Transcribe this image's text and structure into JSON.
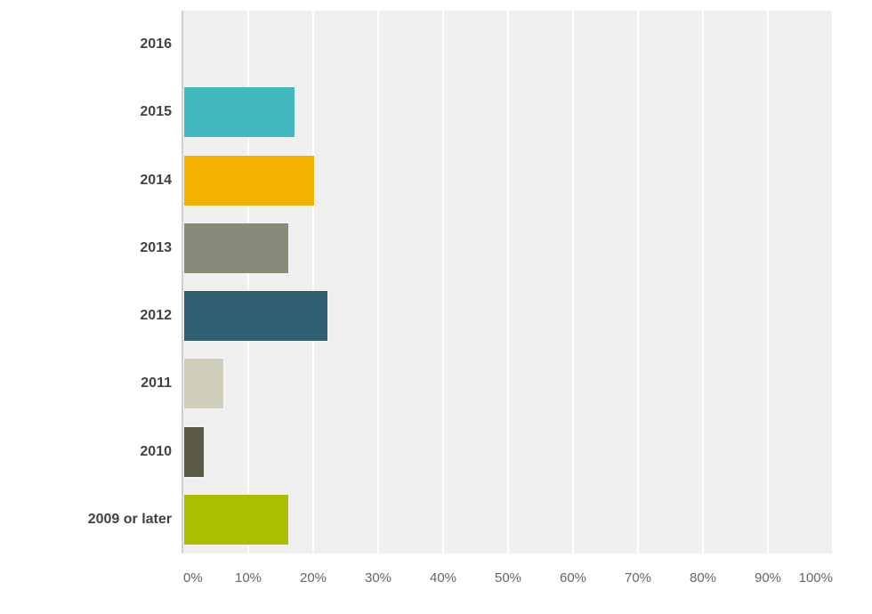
{
  "chart_data": {
    "type": "bar",
    "orientation": "horizontal",
    "title": "",
    "xlabel": "",
    "ylabel": "",
    "categories": [
      "2016",
      "2015",
      "2014",
      "2013",
      "2012",
      "2011",
      "2010",
      "2009 or later"
    ],
    "values": [
      0,
      17,
      20,
      16,
      22,
      6,
      3,
      16
    ],
    "value_unit": "%",
    "colors": [
      null,
      "#44b9bd",
      "#f3b200",
      "#898b7a",
      "#315f71",
      "#cecdb9",
      "#5b5a49",
      "#aabf00"
    ],
    "xlim": [
      0,
      100
    ],
    "x_ticks": [
      "0%",
      "10%",
      "20%",
      "30%",
      "40%",
      "50%",
      "60%",
      "70%",
      "80%",
      "90%",
      "100%"
    ],
    "x_tick_values": [
      0,
      10,
      20,
      30,
      40,
      50,
      60,
      70,
      80,
      90,
      100
    ],
    "grid": true,
    "legend": false
  },
  "style": {
    "plot_background": "#efefef",
    "gridline_color": "#ffffff",
    "y_axis_line_color": "#cfcfcf",
    "x_axis_line_color": "#d7d7d7",
    "category_label_color": "#424242",
    "tick_label_color": "#666666"
  }
}
